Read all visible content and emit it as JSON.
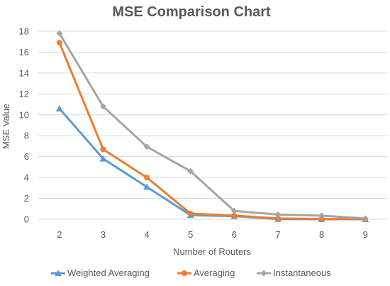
{
  "chart_data": {
    "type": "line",
    "title": "MSE Comparison Chart",
    "xlabel": "Number of Routers",
    "ylabel": "MSE Value",
    "x": [
      2,
      3,
      4,
      5,
      6,
      7,
      8,
      9
    ],
    "ylim": [
      0,
      18
    ],
    "yticks": [
      0,
      2,
      4,
      6,
      8,
      10,
      12,
      14,
      16,
      18
    ],
    "grid": true,
    "legend_position": "bottom",
    "series": [
      {
        "name": "Weighted Averaging",
        "color": "#5b9bd5",
        "marker": "triangle",
        "values": [
          10.6,
          5.8,
          3.1,
          0.4,
          0.3,
          0.02,
          0.01,
          0.01
        ]
      },
      {
        "name": "Averaging",
        "color": "#ed7d31",
        "marker": "circle",
        "values": [
          16.9,
          6.7,
          4.0,
          0.55,
          0.35,
          0.08,
          0.03,
          0.02
        ]
      },
      {
        "name": "Instantaneous",
        "color": "#a5a5a5",
        "marker": "diamond",
        "values": [
          17.8,
          10.8,
          6.95,
          4.6,
          0.8,
          0.45,
          0.35,
          0.08
        ]
      }
    ]
  }
}
